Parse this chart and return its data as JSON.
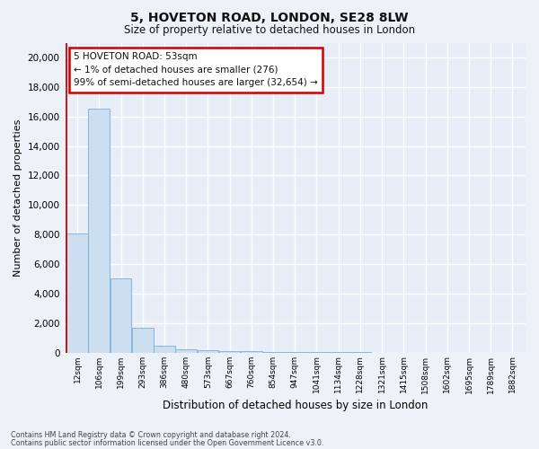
{
  "title1": "5, HOVETON ROAD, LONDON, SE28 8LW",
  "title2": "Size of property relative to detached houses in London",
  "xlabel": "Distribution of detached houses by size in London",
  "ylabel": "Number of detached properties",
  "bin_labels": [
    "12sqm",
    "106sqm",
    "199sqm",
    "293sqm",
    "386sqm",
    "480sqm",
    "573sqm",
    "667sqm",
    "760sqm",
    "854sqm",
    "947sqm",
    "1041sqm",
    "1134sqm",
    "1228sqm",
    "1321sqm",
    "1415sqm",
    "1508sqm",
    "1602sqm",
    "1695sqm",
    "1789sqm",
    "1882sqm"
  ],
  "bar_heights": [
    8050,
    16500,
    5000,
    1700,
    450,
    200,
    145,
    100,
    75,
    50,
    30,
    20,
    15,
    10,
    8,
    6,
    4,
    3,
    2,
    2,
    0
  ],
  "bar_color": "#ccdff0",
  "bar_edge_color": "#7aafd4",
  "property_bin": 0,
  "annotation_line1": "5 HOVETON ROAD: 53sqm",
  "annotation_line2": "← 1% of detached houses are smaller (276)",
  "annotation_line3": "99% of semi-detached houses are larger (32,654) →",
  "vline_color": "#cc0000",
  "annotation_box_color": "#ffffff",
  "annotation_box_edge": "#cc0000",
  "ylim": [
    0,
    21000
  ],
  "yticks": [
    0,
    2000,
    4000,
    6000,
    8000,
    10000,
    12000,
    14000,
    16000,
    18000,
    20000
  ],
  "bg_color": "#edf2f9",
  "plot_bg_color": "#e8eef7",
  "grid_color": "#ffffff",
  "footer1": "Contains HM Land Registry data © Crown copyright and database right 2024.",
  "footer2": "Contains public sector information licensed under the Open Government Licence v3.0."
}
